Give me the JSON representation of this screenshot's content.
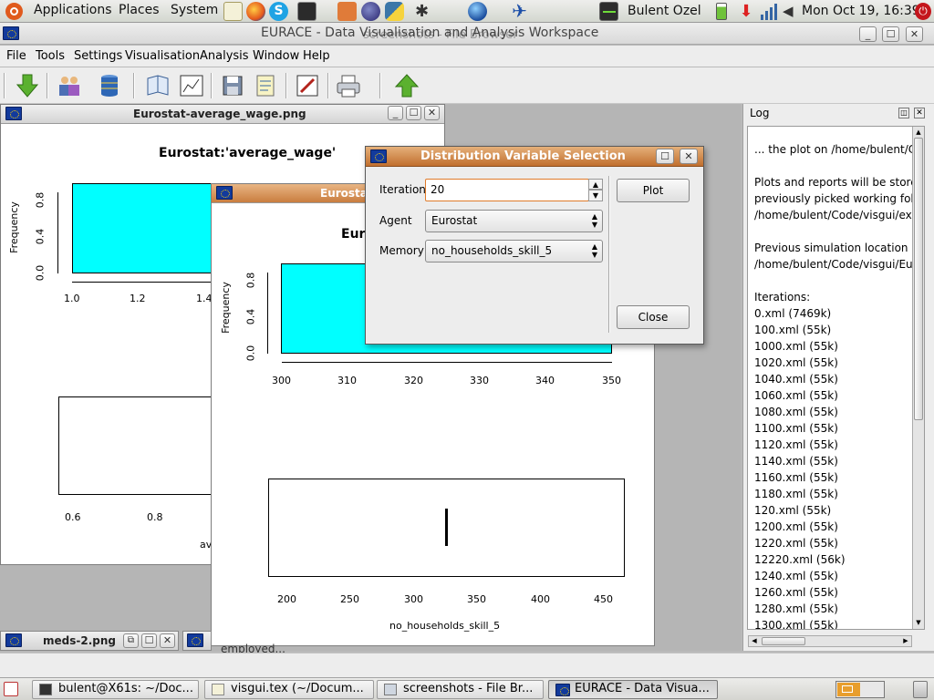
{
  "top_panel": {
    "menus": [
      "Applications",
      "Places",
      "System"
    ],
    "user": "Bulent Ozel",
    "clock": "Mon Oct 19, 16:39"
  },
  "main_window": {
    "title": "EURACE - Data Visualisation and Analysis Workspace",
    "background_title": "screenshots - File Browser",
    "menu": [
      "File",
      "Tools",
      "Settings",
      "Visualisation",
      "Analysis",
      "Window",
      "Help"
    ]
  },
  "plot_window_1": {
    "title": "Eurostat-average_wage.png",
    "plot_title": "Eurostat:'average_wage'",
    "ylabel": "Frequency",
    "yticks": [
      "0.0",
      "0.4",
      "0.8"
    ],
    "xticks": [
      "1.0",
      "1.2",
      "1.4"
    ],
    "xticks_lower": [
      "0.6",
      "0.8"
    ],
    "xlabel_partial": "av"
  },
  "plot_window_2": {
    "title_partial": "Eurostat",
    "plot_title_partial": "Eur",
    "ylabel": "Frequency",
    "yticks": [
      "0.0",
      "0.4",
      "0.8"
    ],
    "xticks": [
      "300",
      "310",
      "320",
      "330",
      "340",
      "350"
    ],
    "xticks_lower": [
      "200",
      "250",
      "300",
      "350",
      "400",
      "450"
    ],
    "xlabel": "no_households_skill_5"
  },
  "minimized_windows": {
    "meds_title": "meds-2.png",
    "employed_partial": "employed..."
  },
  "dialog": {
    "title": "Distribution Variable Selection",
    "iteration_label": "Iteration",
    "iteration_value": "20",
    "agent_label": "Agent",
    "agent_value": "Eurostat",
    "memory_label": "Memory",
    "memory_value": "no_households_skill_5",
    "plot_button": "Plot",
    "close_button": "Close"
  },
  "log": {
    "title": "Log",
    "lines": [
      "... the plot on /home/bulent/Code",
      "",
      "Plots and reports will be stored a",
      " previously picked working folder",
      " /home/bulent/Code/visgui/exper",
      "",
      "Previous simulation location is av",
      " /home/bulent/Code/visgui/Eurac",
      "",
      "Iterations:",
      " 0.xml (7469k)",
      "100.xml (55k)",
      "1000.xml (55k)",
      "1020.xml (55k)",
      "1040.xml (55k)",
      "1060.xml (55k)",
      "1080.xml (55k)",
      "1100.xml (55k)",
      "1120.xml (55k)",
      "1140.xml (55k)",
      "1160.xml (55k)",
      "1180.xml (55k)",
      "120.xml (55k)",
      "1200.xml (55k)",
      "1220.xml (55k)",
      "12220.xml (56k)",
      "1240.xml (55k)",
      "1260.xml (55k)",
      "1280.xml (55k)",
      "1300.xml (55k)"
    ]
  },
  "taskbar": {
    "tasks": [
      "bulent@X61s: ~/Doc...",
      "visgui.tex (~/Docum...",
      "screenshots - File Br...",
      "EURACE - Data Visua..."
    ]
  },
  "colors": {
    "histogram_fill": "#00ffff",
    "dialog_title": "#c97a3a",
    "eu_blue": "#123a9c"
  },
  "icons": {
    "toolbar": [
      "load-down-arrow-icon",
      "users-icon",
      "database-icon",
      "book-icon",
      "chart-image-icon",
      "save-icon",
      "notes-icon",
      "edit-icon",
      "print-icon",
      "upload-up-arrow-icon"
    ]
  }
}
